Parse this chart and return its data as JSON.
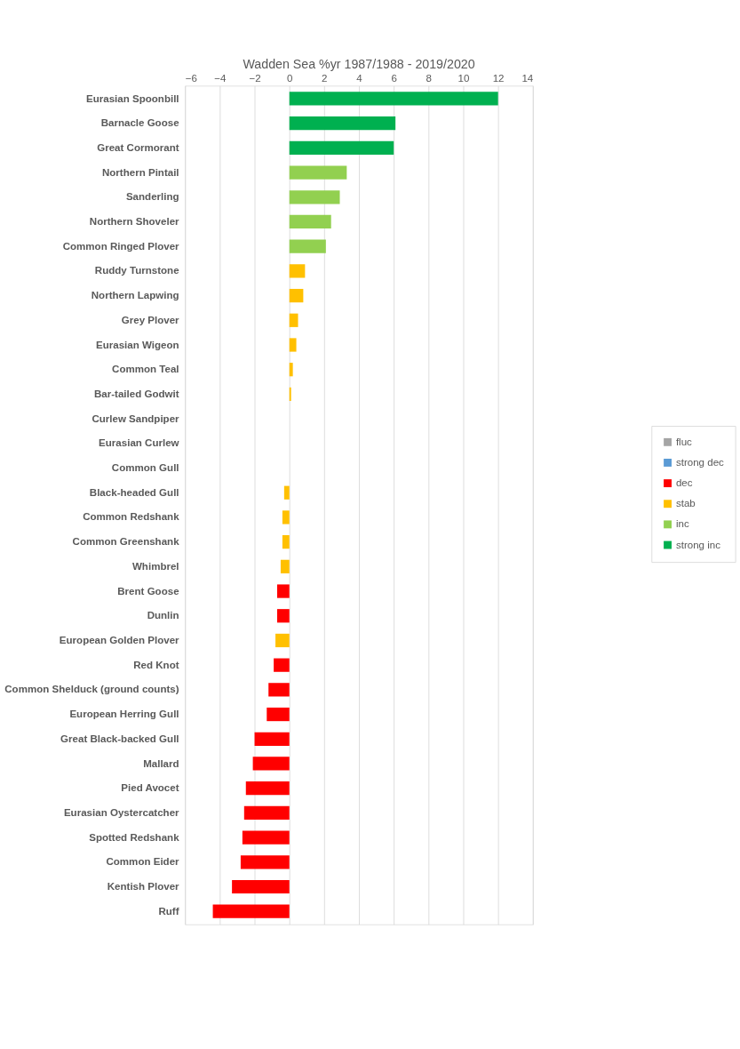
{
  "chart_data": {
    "type": "bar",
    "orientation": "horizontal",
    "title": "Wadden Sea %yr 1987/1988 - 2019/2020",
    "categories": [
      "Eurasian Spoonbill",
      "Barnacle Goose",
      "Great Cormorant",
      "Northern Pintail",
      "Sanderling",
      "Northern Shoveler",
      "Common Ringed Plover",
      "Ruddy Turnstone",
      "Northern Lapwing",
      "Grey Plover",
      "Eurasian Wigeon",
      "Common Teal",
      "Bar-tailed Godwit",
      "Curlew Sandpiper",
      "Eurasian Curlew",
      "Common Gull",
      "Black-headed Gull",
      "Common Redshank",
      "Common Greenshank",
      "Whimbrel",
      "Brent Goose",
      "Dunlin",
      "European Golden Plover",
      "Red Knot",
      "Common Shelduck (ground counts)",
      "European Herring Gull",
      "Great Black-backed Gull",
      "Mallard",
      "Pied Avocet",
      "Eurasian Oystercatcher",
      "Spotted Redshank",
      "Common Eider",
      "Kentish Plover",
      "Ruff"
    ],
    "series": [
      {
        "name": "fluc",
        "color": "#a5a5a5",
        "values": [
          null,
          null,
          null,
          null,
          null,
          null,
          null,
          null,
          null,
          null,
          null,
          null,
          null,
          null,
          null,
          null,
          null,
          null,
          null,
          null,
          null,
          null,
          null,
          null,
          null,
          null,
          null,
          null,
          null,
          null,
          null,
          null,
          null,
          null
        ]
      },
      {
        "name": "strong dec",
        "color": "#5b9bd5",
        "values": [
          null,
          null,
          null,
          null,
          null,
          null,
          null,
          null,
          null,
          null,
          null,
          null,
          null,
          null,
          null,
          null,
          null,
          null,
          null,
          null,
          null,
          null,
          null,
          null,
          null,
          null,
          null,
          null,
          null,
          null,
          null,
          null,
          null,
          null
        ]
      },
      {
        "name": "dec",
        "color": "#ff0000",
        "values": [
          null,
          null,
          null,
          null,
          null,
          null,
          null,
          null,
          null,
          null,
          null,
          null,
          null,
          null,
          null,
          null,
          null,
          null,
          null,
          null,
          -0.7,
          -0.7,
          null,
          -0.9,
          -1.2,
          -1.3,
          -2.0,
          -2.1,
          -2.5,
          -2.6,
          -2.7,
          -2.8,
          -3.3,
          -4.4
        ]
      },
      {
        "name": "stab",
        "color": "#ffc000",
        "values": [
          null,
          null,
          null,
          null,
          null,
          null,
          null,
          0.9,
          0.8,
          0.5,
          0.4,
          0.2,
          0.1,
          0,
          0,
          0,
          -0.3,
          -0.4,
          -0.4,
          -0.5,
          null,
          null,
          -0.8,
          null,
          null,
          null,
          null,
          null,
          null,
          null,
          null,
          null,
          null,
          null
        ]
      },
      {
        "name": "inc",
        "color": "#92d050",
        "values": [
          null,
          null,
          null,
          3.3,
          2.9,
          2.4,
          2.1,
          null,
          null,
          null,
          null,
          null,
          null,
          null,
          null,
          null,
          null,
          null,
          null,
          null,
          null,
          null,
          null,
          null,
          null,
          null,
          null,
          null,
          null,
          null,
          null,
          null,
          null,
          null
        ]
      },
      {
        "name": "strong inc",
        "color": "#00b050",
        "values": [
          12.0,
          6.1,
          6.0,
          null,
          null,
          null,
          null,
          null,
          null,
          null,
          null,
          null,
          null,
          null,
          null,
          null,
          null,
          null,
          null,
          null,
          null,
          null,
          null,
          null,
          null,
          null,
          null,
          null,
          null,
          null,
          null,
          null,
          null,
          null
        ]
      }
    ],
    "xlim": [
      -6,
      14
    ],
    "xticks": [
      -6,
      -4,
      -2,
      0,
      2,
      4,
      6,
      8,
      10,
      12,
      14
    ],
    "grid": "x",
    "legend": "right"
  }
}
